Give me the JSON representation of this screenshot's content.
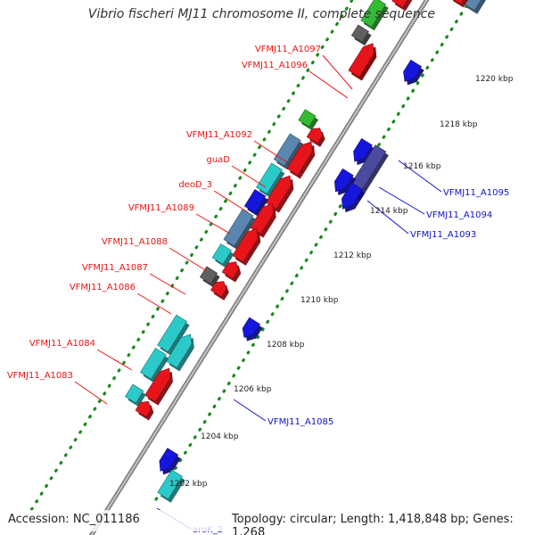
{
  "title": "Vibrio fischeri MJ11 chromosome II, complete sequence",
  "accession": "Accession: NC_011186",
  "topology": "Topology: circular; Length: 1,418,848 bp; Genes: 1,268",
  "colors": {
    "backbone": "#9a9a9a",
    "tick_dots": "#1a8a1a",
    "label_red": "#ee1111",
    "label_blue": "#1111cc",
    "gene_red": "#e8141b",
    "gene_green": "#33bb33",
    "gene_blue": "#1616dd",
    "gene_cyan": "#2cc9c9",
    "gene_steel": "#5b86b0",
    "gene_gray": "#606060",
    "gene_purple": "#4a4aa0"
  },
  "ticks": [
    "1220 kbp",
    "1218 kbp",
    "1216 kbp",
    "1214 kbp",
    "1212 kbp",
    "1210 kbp",
    "1208 kbp",
    "1206 kbp",
    "1204 kbp",
    "1202 kbp"
  ],
  "labels_left": [
    "VFMJ11_A1097",
    "VFMJ11_A1096",
    "VFMJ11_A1092",
    "guaD",
    "deoD_3",
    "VFMJ11_A1089",
    "VFMJ11_A1088",
    "VFMJ11_A1087",
    "VFMJ11_A1086",
    "VFMJ11_A1084",
    "VFMJ11_A1083"
  ],
  "labels_right": [
    "VFMJ11_A1095",
    "VFMJ11_A1094",
    "VFMJ11_A1093",
    "VFMJ11_A1085",
    "aroK_2"
  ]
}
